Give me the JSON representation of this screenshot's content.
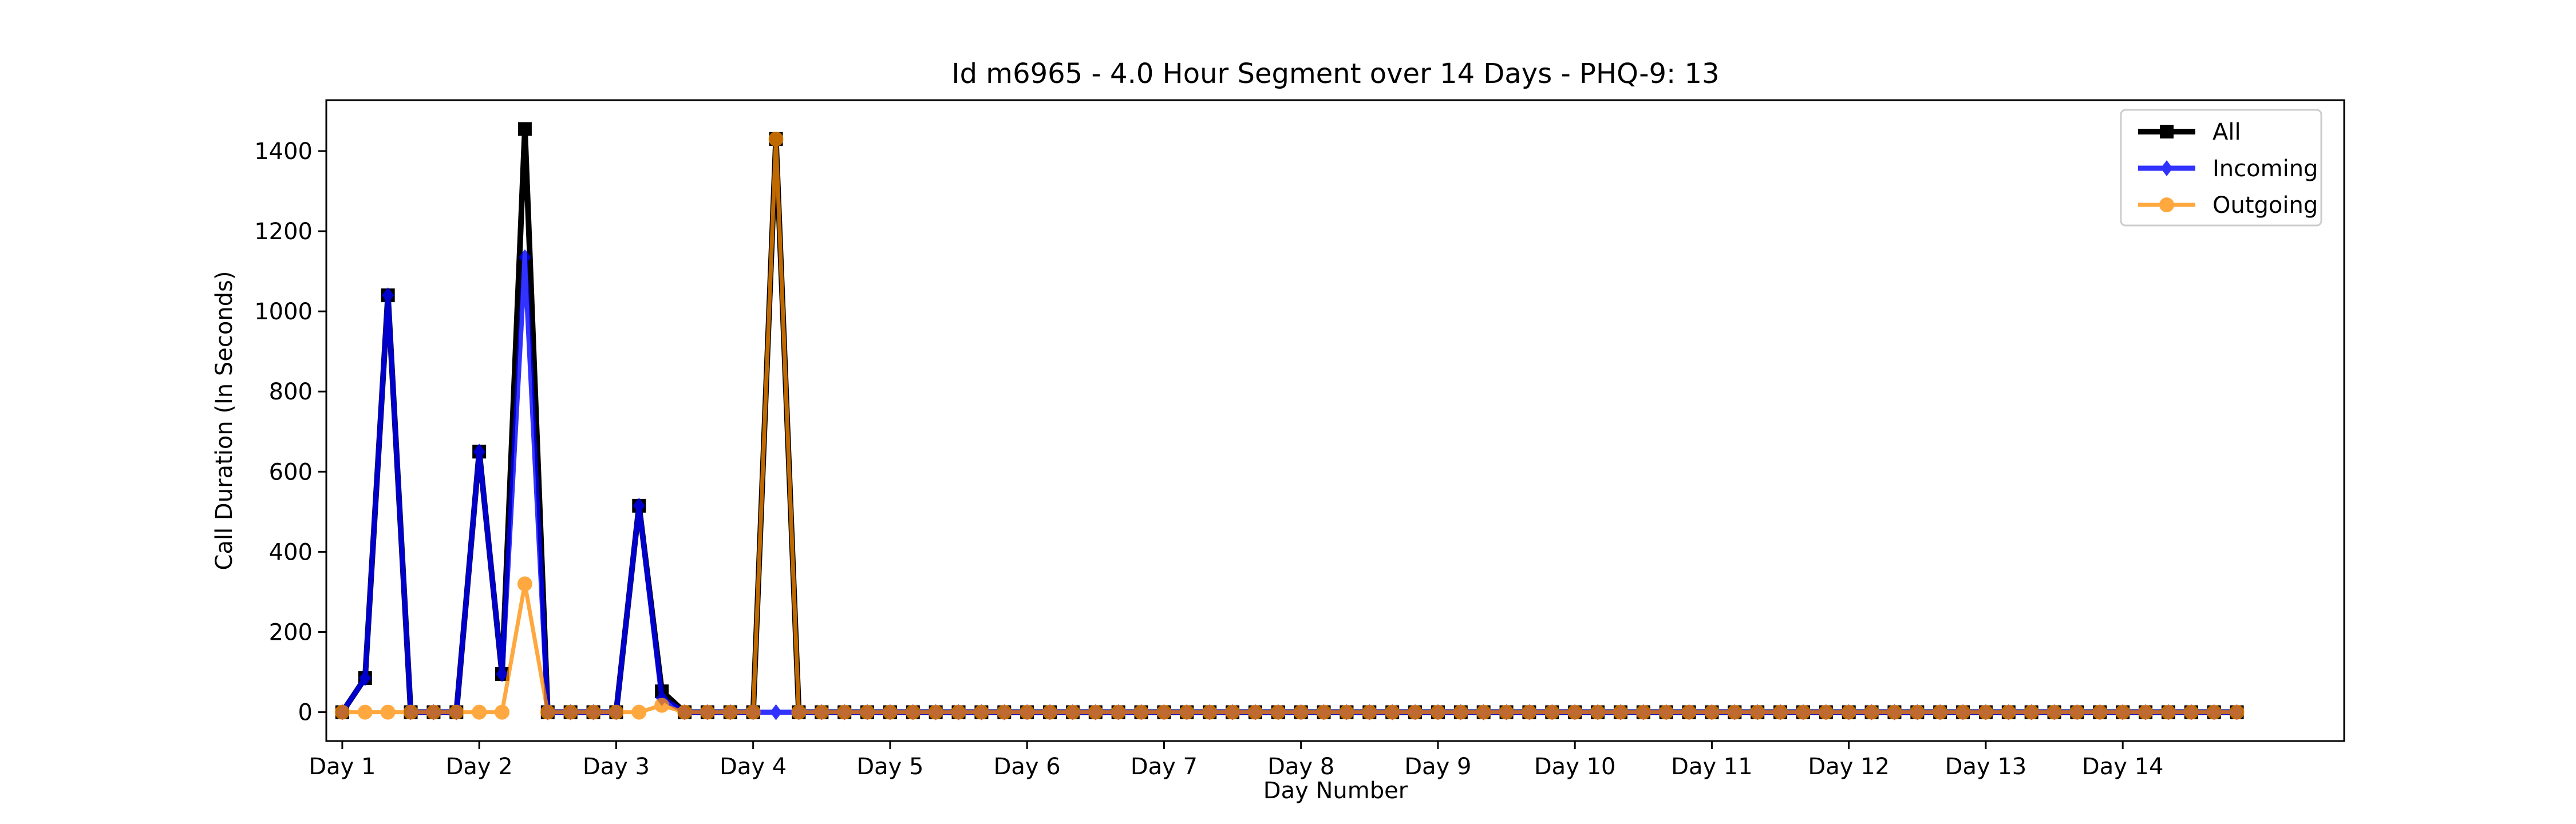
{
  "chart_data": {
    "type": "line",
    "title": "Id m6965 - 4.0 Hour Segment over 14 Days - PHQ-9: 13",
    "xlabel": "Day Number",
    "ylabel": "Call Duration (In Seconds)",
    "x_tick_labels": [
      "Day 1",
      "Day 2",
      "Day 3",
      "Day 4",
      "Day 5",
      "Day 6",
      "Day 7",
      "Day 8",
      "Day 9",
      "Day 10",
      "Day 11",
      "Day 12",
      "Day 13",
      "Day 14"
    ],
    "y_ticks": [
      0,
      200,
      400,
      600,
      800,
      1000,
      1200,
      1400
    ],
    "xlim": [
      -0.7,
      87.7
    ],
    "ylim": [
      -72,
      1527
    ],
    "segments_per_day": 6,
    "grid": false,
    "legend_position": "top-right",
    "series": [
      {
        "name": "All",
        "color": "#000000",
        "marker": "square",
        "values": [
          0,
          85,
          1040,
          0,
          0,
          0,
          650,
          95,
          1455,
          0,
          0,
          0,
          0,
          515,
          52,
          0,
          0,
          0,
          0,
          1430,
          0,
          0,
          0,
          0,
          0,
          0,
          0,
          0,
          0,
          0,
          0,
          0,
          0,
          0,
          0,
          0,
          0,
          0,
          0,
          0,
          0,
          0,
          0,
          0,
          0,
          0,
          0,
          0,
          0,
          0,
          0,
          0,
          0,
          0,
          0,
          0,
          0,
          0,
          0,
          0,
          0,
          0,
          0,
          0,
          0,
          0,
          0,
          0,
          0,
          0,
          0,
          0,
          0,
          0,
          0,
          0,
          0,
          0,
          0,
          0,
          0,
          0,
          0,
          0
        ]
      },
      {
        "name": "Incoming",
        "color": "#0000ff",
        "marker": "diamond",
        "values": [
          0,
          85,
          1040,
          0,
          0,
          0,
          650,
          95,
          1135,
          0,
          0,
          0,
          0,
          515,
          35,
          0,
          0,
          0,
          0,
          0,
          0,
          0,
          0,
          0,
          0,
          0,
          0,
          0,
          0,
          0,
          0,
          0,
          0,
          0,
          0,
          0,
          0,
          0,
          0,
          0,
          0,
          0,
          0,
          0,
          0,
          0,
          0,
          0,
          0,
          0,
          0,
          0,
          0,
          0,
          0,
          0,
          0,
          0,
          0,
          0,
          0,
          0,
          0,
          0,
          0,
          0,
          0,
          0,
          0,
          0,
          0,
          0,
          0,
          0,
          0,
          0,
          0,
          0,
          0,
          0,
          0,
          0,
          0,
          0
        ]
      },
      {
        "name": "Outgoing",
        "color": "#ff8c00",
        "marker": "circle",
        "values": [
          0,
          0,
          0,
          0,
          0,
          0,
          0,
          0,
          320,
          0,
          0,
          0,
          0,
          0,
          17,
          0,
          0,
          0,
          0,
          1430,
          0,
          0,
          0,
          0,
          0,
          0,
          0,
          0,
          0,
          0,
          0,
          0,
          0,
          0,
          0,
          0,
          0,
          0,
          0,
          0,
          0,
          0,
          0,
          0,
          0,
          0,
          0,
          0,
          0,
          0,
          0,
          0,
          0,
          0,
          0,
          0,
          0,
          0,
          0,
          0,
          0,
          0,
          0,
          0,
          0,
          0,
          0,
          0,
          0,
          0,
          0,
          0,
          0,
          0,
          0,
          0,
          0,
          0,
          0,
          0,
          0,
          0,
          0,
          0
        ]
      }
    ]
  }
}
